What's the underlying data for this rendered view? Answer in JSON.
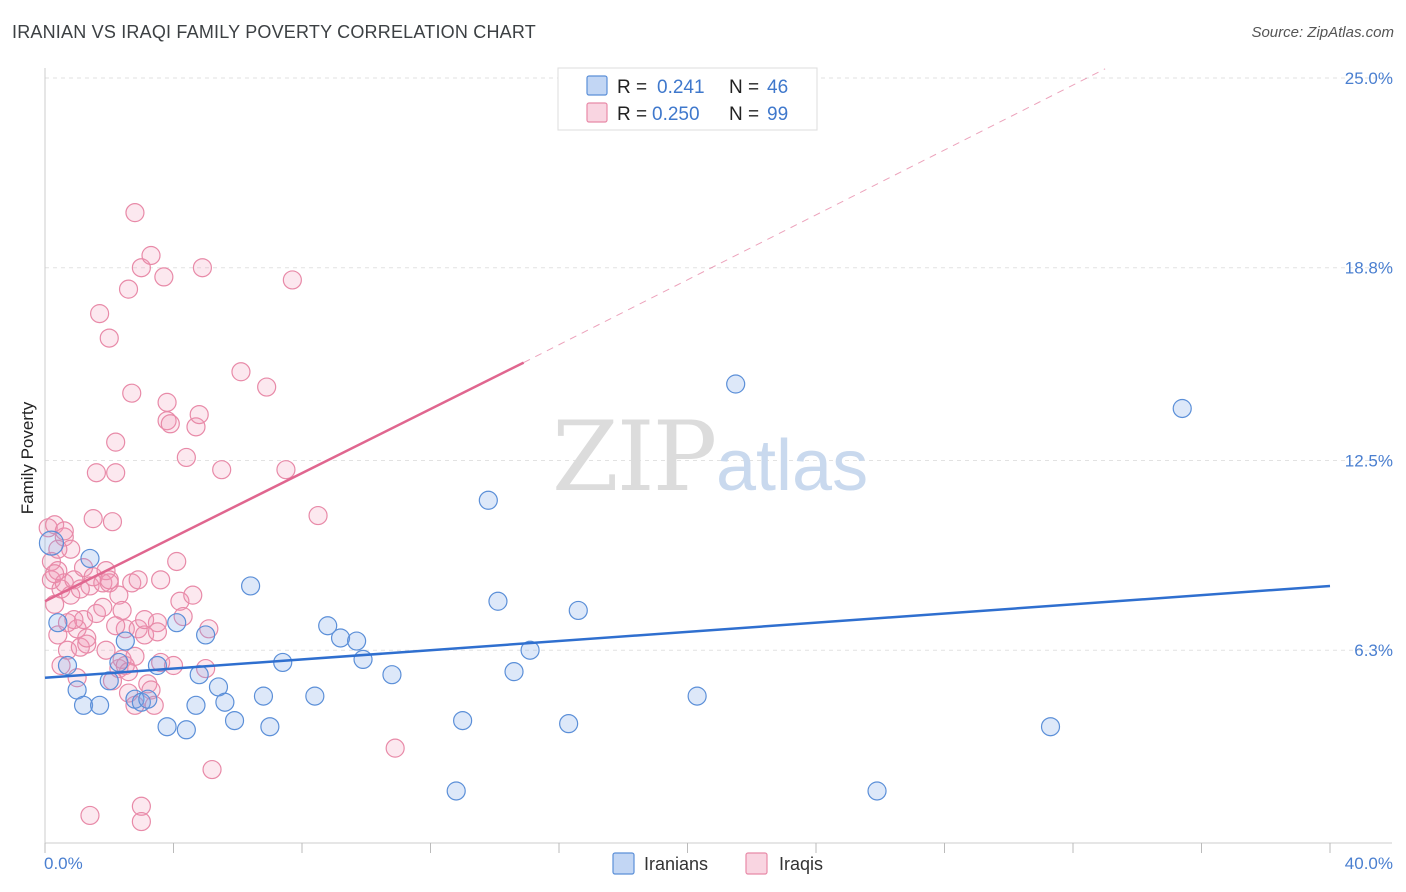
{
  "title": "IRANIAN VS IRAQI FAMILY POVERTY CORRELATION CHART",
  "source": "Source: ZipAtlas.com",
  "watermark": {
    "zip": "ZIP",
    "atlas": "atlas"
  },
  "colors": {
    "iranians": "#5b8fd8",
    "iranians_fill": "rgba(120,165,230,0.25)",
    "iranians_line": "#2f6fcf",
    "iraqis": "#e88aa8",
    "iraqis_fill": "rgba(240,150,180,0.22)",
    "iraqis_line": "#e0668f"
  },
  "legend": {
    "rows": [
      {
        "r_label": "R =",
        "r_value": "0.241",
        "n_label": "N =",
        "n_value": "46"
      },
      {
        "r_label": "R =",
        "r_value": "0.250",
        "n_label": "N =",
        "n_value": "99"
      }
    ]
  },
  "chart_data": {
    "type": "scatter",
    "title": "IRANIAN VS IRAQI FAMILY POVERTY CORRELATION CHART",
    "xlabel": "",
    "ylabel": "Family Poverty",
    "xlim": [
      0,
      40
    ],
    "ylim": [
      0,
      25
    ],
    "x_tick_labels": [
      "0.0%",
      "40.0%"
    ],
    "y_ticks": [
      6.3,
      12.5,
      18.8,
      25.0
    ],
    "y_tick_labels": [
      "6.3%",
      "12.5%",
      "18.8%",
      "25.0%"
    ],
    "grid": true,
    "legend_position": "top-center",
    "series": [
      {
        "name": "Iranians",
        "r": 0.241,
        "n": 46,
        "trend": {
          "x": [
            0,
            40
          ],
          "y": [
            5.4,
            8.4
          ]
        },
        "points": [
          [
            0.2,
            9.8
          ],
          [
            0.4,
            7.2
          ],
          [
            0.7,
            5.8
          ],
          [
            1.0,
            5.0
          ],
          [
            1.2,
            4.5
          ],
          [
            1.4,
            9.3
          ],
          [
            1.7,
            4.5
          ],
          [
            2.0,
            5.3
          ],
          [
            2.3,
            5.9
          ],
          [
            2.5,
            6.6
          ],
          [
            2.8,
            4.7
          ],
          [
            3.0,
            4.6
          ],
          [
            3.2,
            4.7
          ],
          [
            3.5,
            5.8
          ],
          [
            3.8,
            3.8
          ],
          [
            4.1,
            7.2
          ],
          [
            4.4,
            3.7
          ],
          [
            4.7,
            4.5
          ],
          [
            5.0,
            6.8
          ],
          [
            5.4,
            5.1
          ],
          [
            5.6,
            4.6
          ],
          [
            5.9,
            4.0
          ],
          [
            6.4,
            8.4
          ],
          [
            6.8,
            4.8
          ],
          [
            7.0,
            3.8
          ],
          [
            7.4,
            5.9
          ],
          [
            8.4,
            4.8
          ],
          [
            8.8,
            7.1
          ],
          [
            9.2,
            6.7
          ],
          [
            9.7,
            6.6
          ],
          [
            9.9,
            6.0
          ],
          [
            10.8,
            5.5
          ],
          [
            12.8,
            1.7
          ],
          [
            13.0,
            4.0
          ],
          [
            13.8,
            11.2
          ],
          [
            14.1,
            7.9
          ],
          [
            14.6,
            5.6
          ],
          [
            15.1,
            6.3
          ],
          [
            16.3,
            3.9
          ],
          [
            16.6,
            7.6
          ],
          [
            20.3,
            4.8
          ],
          [
            21.5,
            15.0
          ],
          [
            25.9,
            1.7
          ],
          [
            31.3,
            3.8
          ],
          [
            35.4,
            14.2
          ],
          [
            4.8,
            5.5
          ]
        ]
      },
      {
        "name": "Iraqis",
        "r": 0.25,
        "n": 99,
        "trend": {
          "x": [
            0,
            14.9
          ],
          "y": [
            7.9,
            15.7
          ]
        },
        "trend_dashed": {
          "x": [
            14.9,
            33.0
          ],
          "y": [
            15.7,
            25.3
          ]
        },
        "points": [
          [
            0.1,
            10.3
          ],
          [
            0.2,
            9.2
          ],
          [
            0.2,
            8.6
          ],
          [
            0.3,
            10.4
          ],
          [
            0.3,
            7.8
          ],
          [
            0.4,
            8.9
          ],
          [
            0.4,
            6.8
          ],
          [
            0.5,
            8.3
          ],
          [
            0.5,
            5.8
          ],
          [
            0.6,
            10.0
          ],
          [
            0.6,
            8.5
          ],
          [
            0.7,
            7.2
          ],
          [
            0.7,
            6.3
          ],
          [
            0.8,
            9.6
          ],
          [
            0.8,
            8.1
          ],
          [
            0.9,
            8.6
          ],
          [
            1.0,
            5.4
          ],
          [
            1.0,
            7.0
          ],
          [
            1.1,
            6.4
          ],
          [
            1.2,
            9.0
          ],
          [
            1.2,
            7.3
          ],
          [
            1.3,
            6.5
          ],
          [
            1.4,
            8.4
          ],
          [
            1.4,
            0.9
          ],
          [
            1.5,
            8.7
          ],
          [
            1.5,
            10.6
          ],
          [
            1.6,
            12.1
          ],
          [
            1.6,
            7.5
          ],
          [
            1.7,
            17.3
          ],
          [
            1.8,
            8.5
          ],
          [
            1.8,
            7.7
          ],
          [
            1.9,
            6.3
          ],
          [
            2.0,
            16.5
          ],
          [
            2.0,
            8.5
          ],
          [
            2.1,
            5.3
          ],
          [
            2.1,
            10.5
          ],
          [
            2.2,
            12.1
          ],
          [
            2.2,
            13.1
          ],
          [
            2.3,
            8.1
          ],
          [
            2.3,
            5.7
          ],
          [
            2.4,
            7.6
          ],
          [
            2.4,
            6.0
          ],
          [
            2.5,
            5.8
          ],
          [
            2.5,
            7.0
          ],
          [
            2.6,
            18.1
          ],
          [
            2.6,
            4.9
          ],
          [
            2.7,
            14.7
          ],
          [
            2.7,
            8.5
          ],
          [
            2.8,
            4.5
          ],
          [
            2.8,
            6.1
          ],
          [
            2.8,
            20.6
          ],
          [
            2.9,
            8.6
          ],
          [
            2.9,
            7.0
          ],
          [
            3.0,
            18.8
          ],
          [
            3.0,
            1.2
          ],
          [
            3.0,
            0.7
          ],
          [
            3.1,
            6.8
          ],
          [
            3.2,
            5.2
          ],
          [
            3.3,
            5.0
          ],
          [
            3.3,
            19.2
          ],
          [
            3.4,
            4.5
          ],
          [
            3.5,
            7.2
          ],
          [
            3.5,
            6.9
          ],
          [
            3.6,
            5.9
          ],
          [
            3.6,
            8.6
          ],
          [
            3.7,
            18.5
          ],
          [
            3.8,
            14.4
          ],
          [
            3.8,
            13.8
          ],
          [
            3.9,
            13.7
          ],
          [
            4.0,
            5.8
          ],
          [
            4.1,
            9.2
          ],
          [
            4.2,
            7.9
          ],
          [
            4.3,
            7.4
          ],
          [
            4.4,
            12.6
          ],
          [
            4.6,
            8.1
          ],
          [
            4.7,
            13.6
          ],
          [
            4.8,
            14.0
          ],
          [
            4.9,
            18.8
          ],
          [
            5.0,
            5.7
          ],
          [
            5.1,
            7.0
          ],
          [
            5.2,
            2.4
          ],
          [
            5.5,
            12.2
          ],
          [
            6.1,
            15.4
          ],
          [
            6.9,
            14.9
          ],
          [
            7.5,
            12.2
          ],
          [
            7.7,
            18.4
          ],
          [
            8.5,
            10.7
          ],
          [
            10.9,
            3.1
          ],
          [
            0.3,
            8.8
          ],
          [
            0.9,
            7.3
          ],
          [
            1.3,
            6.7
          ],
          [
            1.9,
            8.9
          ],
          [
            2.2,
            7.1
          ],
          [
            2.6,
            5.6
          ],
          [
            3.1,
            7.3
          ],
          [
            0.6,
            10.2
          ],
          [
            1.1,
            8.3
          ],
          [
            2.0,
            8.6
          ],
          [
            0.4,
            9.6
          ]
        ]
      }
    ]
  }
}
